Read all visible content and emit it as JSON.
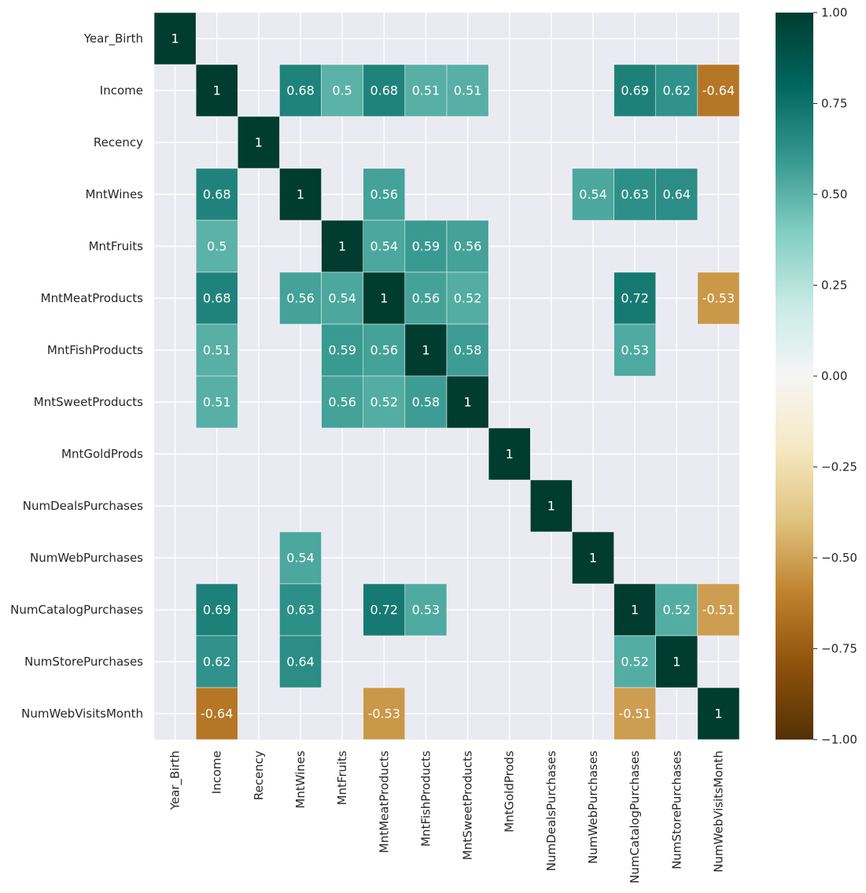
{
  "chart_data": {
    "type": "heatmap",
    "title": "",
    "xlabel": "",
    "ylabel": "",
    "labels": [
      "Year_Birth",
      "Income",
      "Recency",
      "MntWines",
      "MntFruits",
      "MntMeatProducts",
      "MntFishProducts",
      "MntSweetProducts",
      "MntGoldProds",
      "NumDealsPurchases",
      "NumWebPurchases",
      "NumCatalogPurchases",
      "NumStorePurchases",
      "NumWebVisitsMonth"
    ],
    "cells": [
      {
        "row": 0,
        "col": 0,
        "value": 1,
        "label": "1"
      },
      {
        "row": 1,
        "col": 1,
        "value": 1,
        "label": "1"
      },
      {
        "row": 1,
        "col": 3,
        "value": 0.68,
        "label": "0.68"
      },
      {
        "row": 1,
        "col": 4,
        "value": 0.5,
        "label": "0.5"
      },
      {
        "row": 1,
        "col": 5,
        "value": 0.68,
        "label": "0.68"
      },
      {
        "row": 1,
        "col": 6,
        "value": 0.51,
        "label": "0.51"
      },
      {
        "row": 1,
        "col": 7,
        "value": 0.51,
        "label": "0.51"
      },
      {
        "row": 1,
        "col": 11,
        "value": 0.69,
        "label": "0.69"
      },
      {
        "row": 1,
        "col": 12,
        "value": 0.62,
        "label": "0.62"
      },
      {
        "row": 1,
        "col": 13,
        "value": -0.64,
        "label": "-0.64"
      },
      {
        "row": 2,
        "col": 2,
        "value": 1,
        "label": "1"
      },
      {
        "row": 3,
        "col": 1,
        "value": 0.68,
        "label": "0.68"
      },
      {
        "row": 3,
        "col": 3,
        "value": 1,
        "label": "1"
      },
      {
        "row": 3,
        "col": 5,
        "value": 0.56,
        "label": "0.56"
      },
      {
        "row": 3,
        "col": 10,
        "value": 0.54,
        "label": "0.54"
      },
      {
        "row": 3,
        "col": 11,
        "value": 0.63,
        "label": "0.63"
      },
      {
        "row": 3,
        "col": 12,
        "value": 0.64,
        "label": "0.64"
      },
      {
        "row": 4,
        "col": 1,
        "value": 0.5,
        "label": "0.5"
      },
      {
        "row": 4,
        "col": 4,
        "value": 1,
        "label": "1"
      },
      {
        "row": 4,
        "col": 5,
        "value": 0.54,
        "label": "0.54"
      },
      {
        "row": 4,
        "col": 6,
        "value": 0.59,
        "label": "0.59"
      },
      {
        "row": 4,
        "col": 7,
        "value": 0.56,
        "label": "0.56"
      },
      {
        "row": 5,
        "col": 1,
        "value": 0.68,
        "label": "0.68"
      },
      {
        "row": 5,
        "col": 3,
        "value": 0.56,
        "label": "0.56"
      },
      {
        "row": 5,
        "col": 4,
        "value": 0.54,
        "label": "0.54"
      },
      {
        "row": 5,
        "col": 5,
        "value": 1,
        "label": "1"
      },
      {
        "row": 5,
        "col": 6,
        "value": 0.56,
        "label": "0.56"
      },
      {
        "row": 5,
        "col": 7,
        "value": 0.52,
        "label": "0.52"
      },
      {
        "row": 5,
        "col": 11,
        "value": 0.72,
        "label": "0.72"
      },
      {
        "row": 5,
        "col": 13,
        "value": -0.53,
        "label": "-0.53"
      },
      {
        "row": 6,
        "col": 1,
        "value": 0.51,
        "label": "0.51"
      },
      {
        "row": 6,
        "col": 4,
        "value": 0.59,
        "label": "0.59"
      },
      {
        "row": 6,
        "col": 5,
        "value": 0.56,
        "label": "0.56"
      },
      {
        "row": 6,
        "col": 6,
        "value": 1,
        "label": "1"
      },
      {
        "row": 6,
        "col": 7,
        "value": 0.58,
        "label": "0.58"
      },
      {
        "row": 6,
        "col": 11,
        "value": 0.53,
        "label": "0.53"
      },
      {
        "row": 7,
        "col": 1,
        "value": 0.51,
        "label": "0.51"
      },
      {
        "row": 7,
        "col": 4,
        "value": 0.56,
        "label": "0.56"
      },
      {
        "row": 7,
        "col": 5,
        "value": 0.52,
        "label": "0.52"
      },
      {
        "row": 7,
        "col": 6,
        "value": 0.58,
        "label": "0.58"
      },
      {
        "row": 7,
        "col": 7,
        "value": 1,
        "label": "1"
      },
      {
        "row": 8,
        "col": 8,
        "value": 1,
        "label": "1"
      },
      {
        "row": 9,
        "col": 9,
        "value": 1,
        "label": "1"
      },
      {
        "row": 10,
        "col": 3,
        "value": 0.54,
        "label": "0.54"
      },
      {
        "row": 10,
        "col": 10,
        "value": 1,
        "label": "1"
      },
      {
        "row": 11,
        "col": 1,
        "value": 0.69,
        "label": "0.69"
      },
      {
        "row": 11,
        "col": 3,
        "value": 0.63,
        "label": "0.63"
      },
      {
        "row": 11,
        "col": 5,
        "value": 0.72,
        "label": "0.72"
      },
      {
        "row": 11,
        "col": 6,
        "value": 0.53,
        "label": "0.53"
      },
      {
        "row": 11,
        "col": 11,
        "value": 1,
        "label": "1"
      },
      {
        "row": 11,
        "col": 12,
        "value": 0.52,
        "label": "0.52"
      },
      {
        "row": 11,
        "col": 13,
        "value": -0.51,
        "label": "-0.51"
      },
      {
        "row": 12,
        "col": 1,
        "value": 0.62,
        "label": "0.62"
      },
      {
        "row": 12,
        "col": 3,
        "value": 0.64,
        "label": "0.64"
      },
      {
        "row": 12,
        "col": 11,
        "value": 0.52,
        "label": "0.52"
      },
      {
        "row": 12,
        "col": 12,
        "value": 1,
        "label": "1"
      },
      {
        "row": 13,
        "col": 1,
        "value": -0.64,
        "label": "-0.64"
      },
      {
        "row": 13,
        "col": 5,
        "value": -0.53,
        "label": "-0.53"
      },
      {
        "row": 13,
        "col": 11,
        "value": -0.51,
        "label": "-0.51"
      },
      {
        "row": 13,
        "col": 13,
        "value": 1,
        "label": "1"
      }
    ],
    "colorbar": {
      "min": -1.0,
      "max": 1.0,
      "ticks": [
        1.0,
        0.75,
        0.5,
        0.25,
        0.0,
        -0.25,
        -0.5,
        -0.75,
        -1.0
      ],
      "tick_labels": [
        "1.00",
        "0.75",
        "0.50",
        "0.25",
        "0.00",
        "−0.25",
        "−0.50",
        "−0.75",
        "−1.00"
      ],
      "colormap": "BrBG"
    },
    "grid": true,
    "colors": {
      "background": "#eaeaf2",
      "grid": "#ffffff",
      "text": "#262626",
      "cell_border": "#ffffff"
    }
  }
}
